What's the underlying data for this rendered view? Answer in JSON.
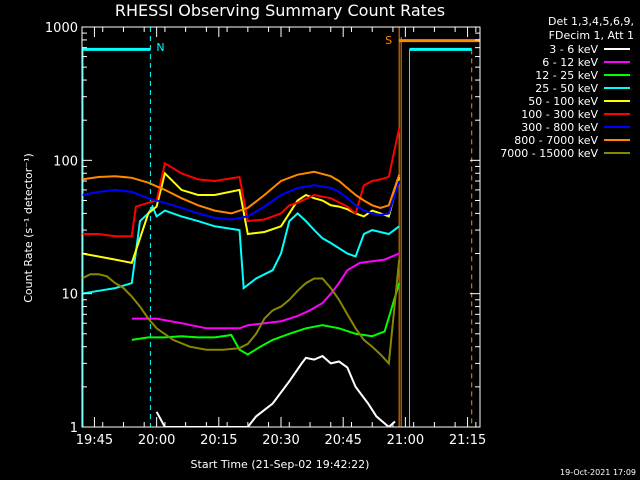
{
  "chart_data": {
    "type": "line",
    "title": "RHESSI Observing Summary Count Rates",
    "xlabel": "Start Time (21-Sep-02 19:42:22)",
    "ylabel": "Count Rate (s⁻¹ detector⁻¹)",
    "yscale": "log",
    "ylim": [
      1,
      1000
    ],
    "xlim_min": [
      0,
      96
    ],
    "x_tick_labels": [
      "19:45",
      "20:00",
      "20:15",
      "20:30",
      "20:45",
      "21:00",
      "21:15"
    ],
    "x_tick_min": [
      3,
      18,
      33,
      48,
      63,
      78,
      93
    ],
    "y_tick_labels": [
      "1",
      "10",
      "100",
      "1000"
    ],
    "y_tick_values": [
      1,
      10,
      100,
      1000
    ],
    "legend_header": [
      "Det 1,3,4,5,6,9,",
      "FDecim 1, Att 1"
    ],
    "series": [
      {
        "name": "3 - 6 keV",
        "color": "#ffffff",
        "x": [
          18,
          20,
          22,
          38,
          40,
          42,
          46,
          50,
          53,
          54,
          56,
          58,
          60,
          62,
          64,
          66,
          69,
          71,
          74,
          75.5
        ],
        "y": [
          1.3,
          1.0,
          1.0,
          1.0,
          1.0,
          1.2,
          1.5,
          2.2,
          3.0,
          3.3,
          3.2,
          3.4,
          3.0,
          3.1,
          2.8,
          2.0,
          1.5,
          1.2,
          1.0,
          1.1
        ]
      },
      {
        "name": "6 - 12 keV",
        "color": "#ff00ff",
        "x": [
          12,
          14,
          18,
          24,
          30,
          34,
          38,
          40,
          44,
          48,
          52,
          55,
          58,
          60,
          62,
          64,
          67,
          70,
          73,
          76.5
        ],
        "y": [
          6.5,
          6.5,
          6.5,
          6.0,
          5.5,
          5.5,
          5.5,
          5.8,
          6.0,
          6.2,
          6.8,
          7.5,
          8.5,
          10.0,
          12.0,
          15.0,
          17.0,
          17.5,
          18.0,
          20.0
        ]
      },
      {
        "name": "12 - 25 keV",
        "color": "#00ff00",
        "x": [
          12,
          16,
          20,
          24,
          28,
          32,
          36,
          38,
          40,
          43,
          46,
          50,
          54,
          58,
          62,
          66,
          70,
          73,
          76.5
        ],
        "y": [
          4.5,
          4.7,
          4.7,
          4.8,
          4.7,
          4.7,
          4.9,
          3.8,
          3.5,
          4.0,
          4.5,
          5.0,
          5.5,
          5.8,
          5.5,
          5.0,
          4.8,
          5.2,
          12.0
        ]
      },
      {
        "name": "25 - 50 keV",
        "color": "#00ffff",
        "x": [
          0,
          4,
          8,
          12,
          14,
          16,
          17,
          18,
          20,
          24,
          28,
          32,
          38,
          39,
          42,
          46,
          48,
          50,
          52,
          54,
          56,
          58,
          60,
          64,
          66,
          68,
          70,
          74,
          76.5
        ],
        "y": [
          10.0,
          10.5,
          11.0,
          12.0,
          35.0,
          40.0,
          45.0,
          38.0,
          42.0,
          38.0,
          35.0,
          32.0,
          30.0,
          11.0,
          13.0,
          15.0,
          20.0,
          35.0,
          40.0,
          35.0,
          30.0,
          26.0,
          24.0,
          20.0,
          19.0,
          28.0,
          30.0,
          28.0,
          32.0
        ]
      },
      {
        "name": "50 - 100 keV",
        "color": "#ffff00",
        "x": [
          0,
          4,
          8,
          12,
          16,
          18,
          20,
          24,
          28,
          32,
          38,
          40,
          44,
          48,
          50,
          52,
          54,
          56,
          58,
          60,
          62,
          64,
          66,
          68,
          70,
          72,
          74,
          76.5
        ],
        "y": [
          20.0,
          19.0,
          18.0,
          17.0,
          40.0,
          45.0,
          80.0,
          60.0,
          55.0,
          55.0,
          60.0,
          28.0,
          29.0,
          32.0,
          40.0,
          50.0,
          55.0,
          52.0,
          50.0,
          46.0,
          45.0,
          43.0,
          40.0,
          38.0,
          42.0,
          40.0,
          38.0,
          75.0
        ]
      },
      {
        "name": "100 - 300 keV",
        "color": "#ff0000",
        "x": [
          0,
          4,
          8,
          12,
          13,
          16,
          18,
          20,
          24,
          28,
          32,
          38,
          40,
          44,
          48,
          50,
          52,
          56,
          60,
          64,
          66,
          68,
          70,
          72,
          74,
          76.5
        ],
        "y": [
          28.0,
          28.0,
          27.0,
          27.0,
          45.0,
          48.0,
          50.0,
          95.0,
          80.0,
          72.0,
          70.0,
          75.0,
          35.0,
          36.0,
          40.0,
          46.0,
          48.0,
          55.0,
          52.0,
          45.0,
          40.0,
          65.0,
          70.0,
          72.0,
          75.0,
          175.0
        ]
      },
      {
        "name": "300 - 800 keV",
        "color": "#0000ff",
        "x": [
          0,
          4,
          8,
          12,
          16,
          20,
          24,
          28,
          32,
          36,
          40,
          44,
          48,
          52,
          56,
          60,
          62,
          64,
          66,
          68,
          70,
          72,
          74,
          76.5
        ],
        "y": [
          55.0,
          58.0,
          60.0,
          58.0,
          52.0,
          48.0,
          44.0,
          40.0,
          37.0,
          36.0,
          38.0,
          45.0,
          55.0,
          62.0,
          65.0,
          62.0,
          58.0,
          52.0,
          46.0,
          42.0,
          40.0,
          39.0,
          40.0,
          70.0
        ]
      },
      {
        "name": "800 - 7000 keV",
        "color": "#ff8800",
        "x": [
          0,
          4,
          8,
          12,
          16,
          20,
          24,
          28,
          32,
          36,
          40,
          44,
          48,
          52,
          56,
          60,
          62,
          64,
          66,
          68,
          70,
          72,
          74,
          76.5
        ],
        "y": [
          72.0,
          75.0,
          76.0,
          74.0,
          68.0,
          60.0,
          52.0,
          46.0,
          42.0,
          40.0,
          44.0,
          55.0,
          70.0,
          78.0,
          82.0,
          76.0,
          70.0,
          62.0,
          55.0,
          50.0,
          46.0,
          44.0,
          46.0,
          78.0
        ]
      },
      {
        "name": "7000 - 15000 keV",
        "color": "#888800",
        "x": [
          0,
          2,
          4,
          6,
          8,
          10,
          12,
          14,
          16,
          18,
          22,
          26,
          30,
          34,
          38,
          40,
          42,
          44,
          46,
          48,
          50,
          52,
          54,
          56,
          58,
          60,
          62,
          64,
          66,
          68,
          70,
          72,
          74,
          76.5
        ],
        "y": [
          13.0,
          14.0,
          14.0,
          13.5,
          12.0,
          11.0,
          9.5,
          8.0,
          6.5,
          5.5,
          4.5,
          4.0,
          3.8,
          3.8,
          3.9,
          4.2,
          5.0,
          6.5,
          7.5,
          8.0,
          9.0,
          10.5,
          12.0,
          13.0,
          13.0,
          11.0,
          9.0,
          7.0,
          5.5,
          4.5,
          4.0,
          3.5,
          3.0,
          18.0
        ]
      }
    ],
    "markers": {
      "cyan_level": 680,
      "orange_level": 790,
      "n_label": "N",
      "s_label": "S",
      "n_line_x": [
        0,
        16.5
      ],
      "n_end_x": 16.5,
      "s_line_x": [
        76.5,
        96
      ],
      "s_edge_x": 76.5,
      "cyan_right_x": [
        79,
        94
      ],
      "cyan_right_edges": [
        79,
        94
      ]
    },
    "grid": false,
    "legend_position": "right"
  },
  "footer": {
    "date": "19-Oct-2021 17:09"
  }
}
